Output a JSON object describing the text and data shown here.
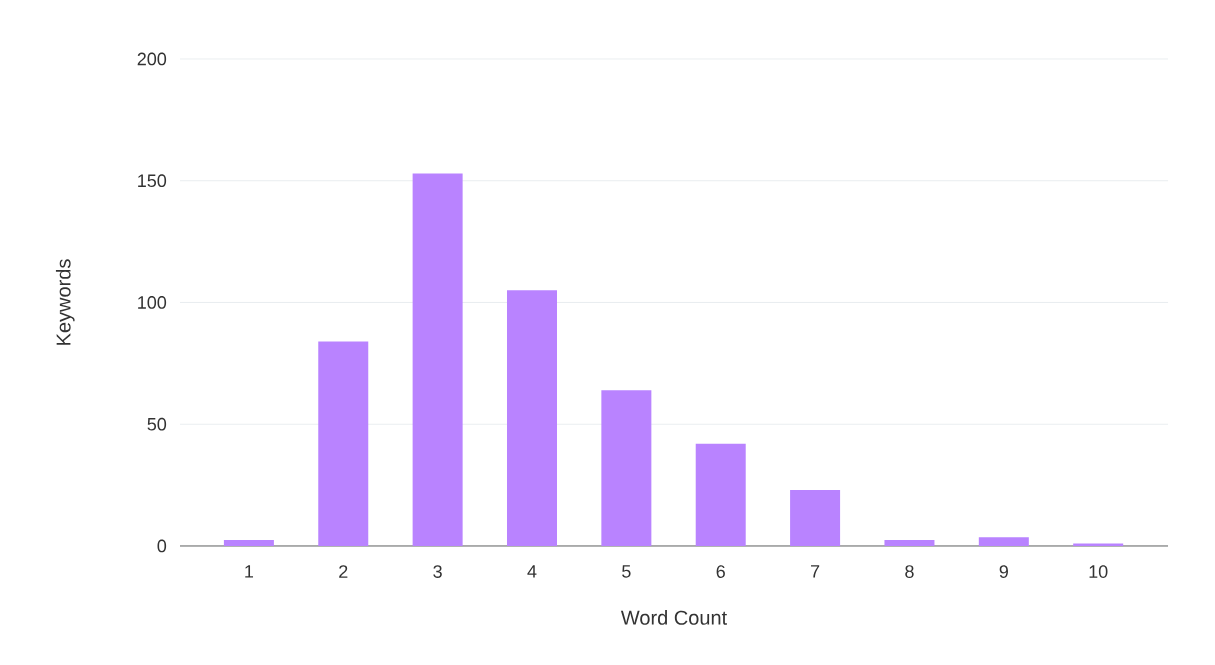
{
  "chart_data": {
    "type": "bar",
    "xlabel": "Word Count",
    "ylabel": "Keywords",
    "categories": [
      "1",
      "2",
      "3",
      "4",
      "5",
      "6",
      "7",
      "8",
      "9",
      "10"
    ],
    "values": [
      2.5,
      84,
      153,
      105,
      64,
      42,
      23,
      2.5,
      3.6,
      1
    ],
    "color": "#b983ff",
    "ylim": [
      0,
      200
    ],
    "yticks": [
      0,
      50,
      100,
      150,
      200
    ],
    "grid": "y"
  }
}
